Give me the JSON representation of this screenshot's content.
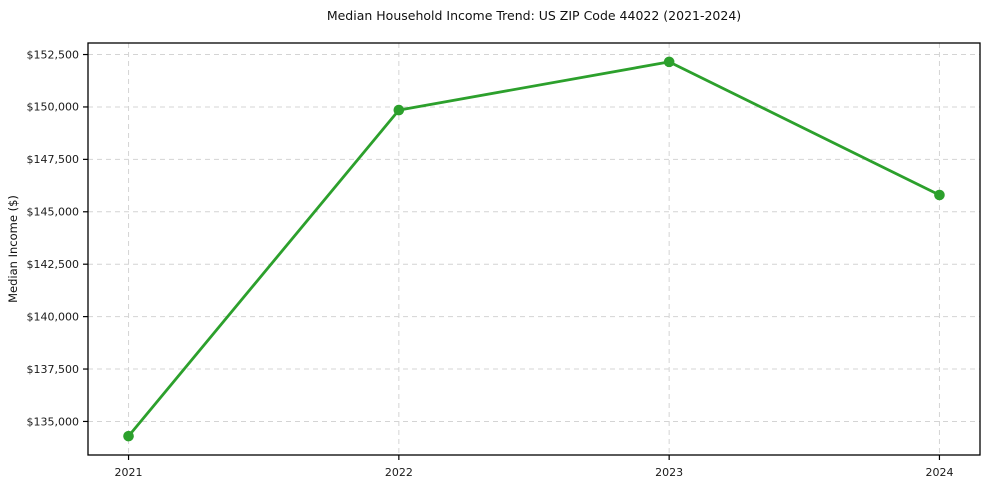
{
  "page": {
    "background": "#ffffff"
  },
  "chart_data": {
    "type": "line",
    "title": "Median Household Income Trend: US ZIP Code 44022 (2021-2024)",
    "xlabel": "",
    "ylabel": "Median Income ($)",
    "x": [
      2021,
      2022,
      2023,
      2024
    ],
    "x_tick_labels": [
      "2021",
      "2022",
      "2023",
      "2024"
    ],
    "values": [
      134300,
      149850,
      152150,
      145800
    ],
    "y_ticks": [
      135000,
      137500,
      140000,
      142500,
      145000,
      147500,
      150000,
      152500
    ],
    "y_tick_labels": [
      "$135,000",
      "$137,500",
      "$140,000",
      "$142,500",
      "$145,000",
      "$147,500",
      "$150,000",
      "$152,500"
    ],
    "ylim": [
      133400,
      153050
    ],
    "xlim": [
      2020.85,
      2024.15
    ],
    "grid": true,
    "grid_style": "dashed",
    "legend": false,
    "line_color": "#2ca02c",
    "marker": "circle",
    "grid_color": "#d4d4d4",
    "axis_color": "#000000",
    "text_color": "#1a1a1a"
  }
}
